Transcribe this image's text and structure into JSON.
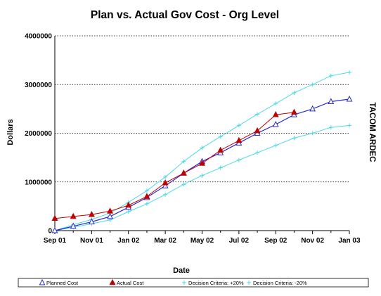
{
  "chart_data": {
    "type": "line",
    "title": "Plan vs. Actual Gov Cost - Org Level",
    "xlabel": "Date",
    "ylabel": "Dollars",
    "side_label": "TACOM ARDEC",
    "x_tick_labels": [
      "Sep 01",
      "Nov 01",
      "Jan 02",
      "Mar 02",
      "May 02",
      "Jul 02",
      "Sep 02",
      "Nov 02",
      "Jan 03"
    ],
    "y_tick_labels": [
      "0",
      "1000000",
      "2000000",
      "3000000",
      "4000000"
    ],
    "ylim": [
      0,
      4000000
    ],
    "grid": true,
    "legend_position": "bottom",
    "x": [
      "Sep 01",
      "Oct 01",
      "Nov 01",
      "Dec 01",
      "Jan 02",
      "Feb 02",
      "Mar 02",
      "Apr 02",
      "May 02",
      "Jun 02",
      "Jul 02",
      "Aug 02",
      "Sep 02",
      "Oct 02",
      "Nov 02",
      "Dec 02",
      "Jan 03"
    ],
    "series": [
      {
        "name": "Planned Cost",
        "color": "#2b2bd0",
        "marker": "open-triangle",
        "values": [
          0,
          90000,
          180000,
          290000,
          480000,
          680000,
          920000,
          1180000,
          1420000,
          1600000,
          1800000,
          2000000,
          2180000,
          2380000,
          2500000,
          2650000,
          2700000
        ]
      },
      {
        "name": "Actual Cost",
        "color": "#c00000",
        "marker": "filled-triangle",
        "values": [
          250000,
          290000,
          330000,
          400000,
          520000,
          700000,
          980000,
          1180000,
          1380000,
          1650000,
          1850000,
          2050000,
          2380000,
          2430000,
          null,
          null,
          null
        ]
      },
      {
        "name": "Decision Criteria: +20%",
        "color": "#4dd9e6",
        "marker": "plus",
        "values": [
          0,
          120000,
          230000,
          360000,
          580000,
          820000,
          1100000,
          1420000,
          1700000,
          1930000,
          2160000,
          2390000,
          2610000,
          2830000,
          3000000,
          3180000,
          3250000
        ]
      },
      {
        "name": "Decision Criteria: -20%",
        "color": "#4dd9e6",
        "marker": "plus",
        "values": [
          0,
          70000,
          140000,
          220000,
          390000,
          550000,
          740000,
          950000,
          1130000,
          1290000,
          1450000,
          1600000,
          1750000,
          1900000,
          2000000,
          2120000,
          2160000
        ]
      }
    ]
  }
}
